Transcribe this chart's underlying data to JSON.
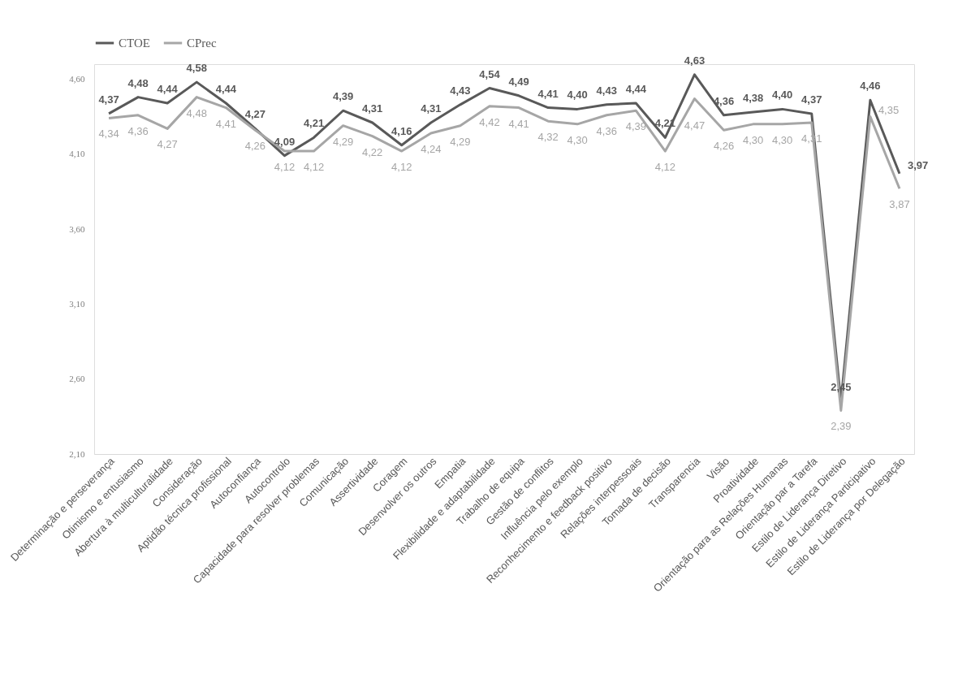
{
  "chart_data": {
    "type": "line",
    "categories": [
      "Determinação e perseverança",
      "Otimismo e entusiasmo",
      "Abertura à multiculturalidade",
      "Consideração",
      "Aptidão técnica profissional",
      "Autoconfiança",
      "Autocontrolo",
      "Capacidade para resolver problemas",
      "Comunicação",
      "Assertividade",
      "Coragem",
      "Desenvolver os outros",
      "Empatia",
      "Flexibilidade e adaptabilidade",
      "Trabalho de equipa",
      "Gestão de conflitos",
      "Influência pelo exemplo",
      "Reconhecimento e feedback positivo",
      "Relações interpessoais",
      "Tomada de decisão",
      "Transparencia",
      "Visão",
      "Proatividade",
      "Orientação para as Relações Humanas",
      "Orientação par a Tarefa",
      "Estilo de Liderança Diretivo",
      "Estilo de Liderança Participativo",
      "Estilo de Liderança por Delegação"
    ],
    "series": [
      {
        "name": "CTOE",
        "color": "#595959",
        "values": [
          4.37,
          4.48,
          4.44,
          4.58,
          4.44,
          4.27,
          4.09,
          4.21,
          4.39,
          4.31,
          4.16,
          4.31,
          4.43,
          4.54,
          4.49,
          4.41,
          4.4,
          4.43,
          4.44,
          4.21,
          4.63,
          4.36,
          4.38,
          4.4,
          4.37,
          2.45,
          4.46,
          3.97
        ],
        "value_labels": [
          "4,37",
          "4,48",
          "4,44",
          "4,58",
          "4,44",
          "4,27",
          "4,09",
          "4,21",
          "4,39",
          "4,31",
          "4,16",
          "4,31",
          "4,43",
          "4,54",
          "4,49",
          "4,41",
          "4,40",
          "4,43",
          "4,44",
          "4,21",
          "4,63",
          "4,36",
          "4,38",
          "4,40",
          "4,37",
          "2,45",
          "4,46",
          "3,97"
        ]
      },
      {
        "name": "CPrec",
        "color": "#a6a6a6",
        "values": [
          4.34,
          4.36,
          4.27,
          4.48,
          4.41,
          4.26,
          4.12,
          4.12,
          4.29,
          4.22,
          4.12,
          4.24,
          4.29,
          4.42,
          4.41,
          4.32,
          4.3,
          4.36,
          4.39,
          4.12,
          4.47,
          4.26,
          4.3,
          4.3,
          4.31,
          2.39,
          4.35,
          3.87
        ],
        "value_labels": [
          "4,34",
          "4,36",
          "4,27",
          "4,48",
          "4,41",
          "4,26",
          "4,12",
          "4,12",
          "4,29",
          "4,22",
          "4,12",
          "4,24",
          "4,29",
          "4,42",
          "4,41",
          "4,32",
          "4,30",
          "4,36",
          "4,39",
          "4,12",
          "4,47",
          "4,26",
          "4,30",
          "4,30",
          "4,31",
          "2,39",
          "4,35",
          "3,87"
        ]
      }
    ],
    "ylim": [
      2.1,
      4.7
    ],
    "yticks": [
      {
        "value": 2.1,
        "label": "2,10"
      },
      {
        "value": 2.6,
        "label": "2,60"
      },
      {
        "value": 3.1,
        "label": "3,10"
      },
      {
        "value": 3.6,
        "label": "3,60"
      },
      {
        "value": 4.1,
        "label": "4,10"
      },
      {
        "value": 4.6,
        "label": "4,60"
      }
    ],
    "legend": "top",
    "grid": false,
    "marker": "none",
    "line_style": "solid"
  }
}
